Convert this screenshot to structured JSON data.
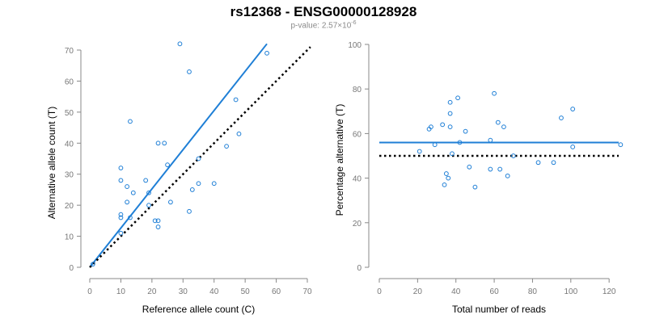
{
  "title": "rs12368 - ENSG00000128928",
  "subtitle": {
    "prefix": "p-value: 2.57×10",
    "exponent": "-6"
  },
  "colors": {
    "points": "#1f7fd6",
    "fit_line": "#1f7fd6",
    "reference_line": "#000000",
    "axis": "#888888"
  },
  "chart_data": [
    {
      "type": "scatter",
      "xlabel": "Reference allele count (C)",
      "ylabel": "Alternative allele count (T)",
      "xlim": [
        0,
        70
      ],
      "ylim": [
        0,
        70
      ],
      "xticks": [
        0,
        10,
        20,
        30,
        40,
        50,
        60,
        70
      ],
      "yticks": [
        0,
        10,
        20,
        30,
        40,
        50,
        60,
        70
      ],
      "points": [
        [
          1,
          1
        ],
        [
          10,
          11
        ],
        [
          10,
          16
        ],
        [
          10,
          17
        ],
        [
          10,
          28
        ],
        [
          10,
          32
        ],
        [
          12,
          26
        ],
        [
          12,
          21
        ],
        [
          13,
          16
        ],
        [
          13,
          47
        ],
        [
          14,
          24
        ],
        [
          18,
          28
        ],
        [
          19,
          24
        ],
        [
          19,
          20
        ],
        [
          21,
          15
        ],
        [
          22,
          13
        ],
        [
          22,
          15
        ],
        [
          22,
          40
        ],
        [
          24,
          40
        ],
        [
          25,
          33
        ],
        [
          26,
          21
        ],
        [
          29,
          72
        ],
        [
          32,
          63
        ],
        [
          32,
          18
        ],
        [
          33,
          25
        ],
        [
          35,
          27
        ],
        [
          35,
          35
        ],
        [
          40,
          27
        ],
        [
          44,
          39
        ],
        [
          47,
          54
        ],
        [
          48,
          43
        ],
        [
          57,
          69
        ]
      ],
      "lines": [
        {
          "kind": "fit",
          "from": [
            0,
            0
          ],
          "to": [
            57,
            72
          ]
        },
        {
          "kind": "reference",
          "dashed": true,
          "from": [
            0,
            0
          ],
          "to": [
            71,
            71
          ]
        }
      ]
    },
    {
      "type": "scatter",
      "xlabel": "Total number of reads",
      "ylabel": "Percentage alternative (T)",
      "xlim": [
        0,
        125
      ],
      "ylim": [
        0,
        100
      ],
      "xticks": [
        0,
        20,
        40,
        60,
        80,
        100,
        120
      ],
      "yticks": [
        0,
        20,
        40,
        60,
        80,
        100
      ],
      "points": [
        [
          21,
          52
        ],
        [
          26,
          62
        ],
        [
          27,
          63
        ],
        [
          29,
          55
        ],
        [
          33,
          64
        ],
        [
          34,
          37
        ],
        [
          35,
          42
        ],
        [
          36,
          40
        ],
        [
          37,
          63
        ],
        [
          37,
          69
        ],
        [
          37,
          74
        ],
        [
          38,
          51
        ],
        [
          41,
          76
        ],
        [
          42,
          56
        ],
        [
          45,
          61
        ],
        [
          47,
          45
        ],
        [
          50,
          36
        ],
        [
          58,
          57
        ],
        [
          58,
          44
        ],
        [
          60,
          78
        ],
        [
          62,
          65
        ],
        [
          63,
          44
        ],
        [
          65,
          63
        ],
        [
          67,
          41
        ],
        [
          70,
          50
        ],
        [
          83,
          47
        ],
        [
          91,
          47
        ],
        [
          95,
          67
        ],
        [
          101,
          71
        ],
        [
          101,
          54
        ],
        [
          126,
          55
        ]
      ],
      "lines": [
        {
          "kind": "fit",
          "from": [
            0,
            56
          ],
          "to": [
            125,
            56
          ]
        },
        {
          "kind": "reference",
          "dashed": true,
          "from": [
            0,
            50
          ],
          "to": [
            125,
            50
          ]
        }
      ]
    }
  ]
}
